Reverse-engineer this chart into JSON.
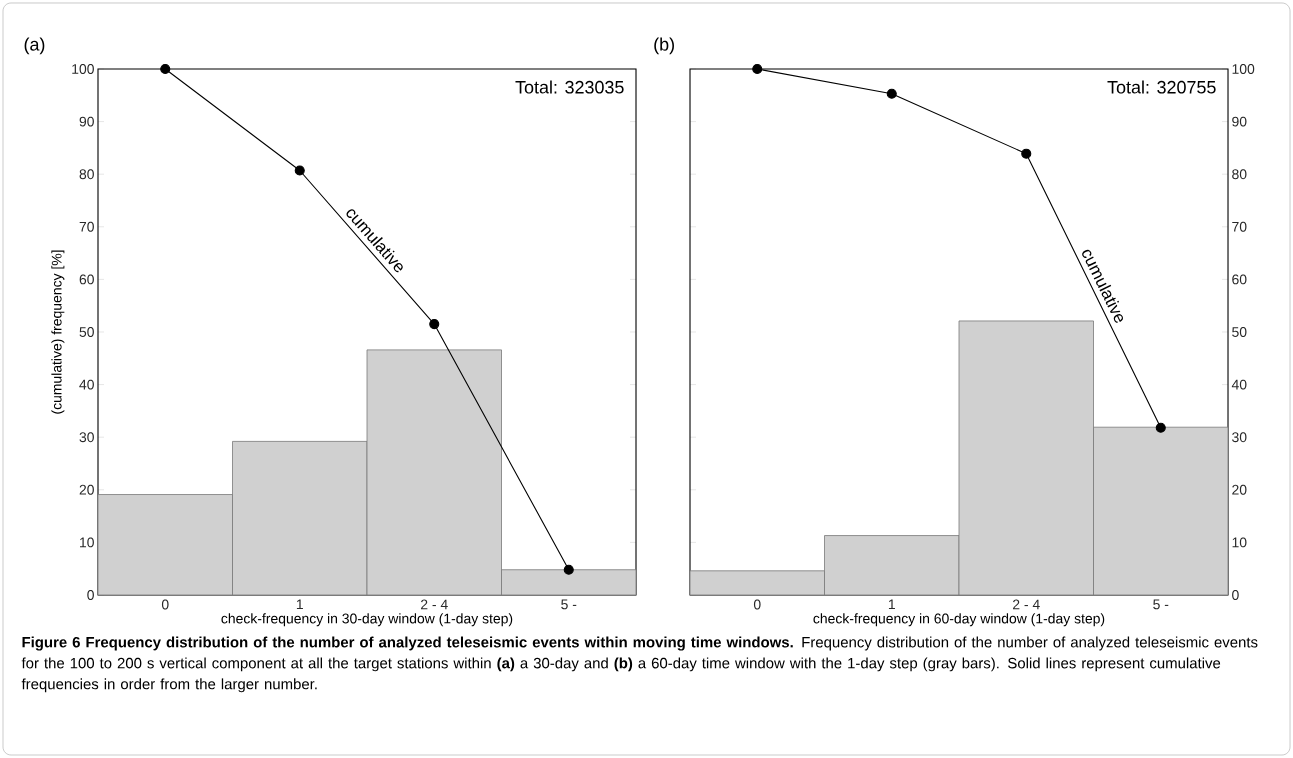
{
  "chart_data": [
    {
      "type": "bar",
      "title": "(a)",
      "xlabel": "check-frequency in 30-day window (1-day step)",
      "ylabel": "(cumulative) frequency [%]",
      "categories": [
        "0",
        "1",
        "2 - 4",
        "5 -"
      ],
      "series": [
        {
          "color": "#d0d0d0",
          "values": [
            19.1,
            29.2,
            46.6,
            4.8
          ]
        },
        {
          "type": "line",
          "name": "cumulative",
          "color": "#000000",
          "values": [
            100,
            80.7,
            51.5,
            4.8
          ]
        }
      ],
      "ylim": [
        0,
        100
      ],
      "yticks": [
        0,
        10,
        20,
        30,
        40,
        50,
        60,
        70,
        80,
        90,
        100
      ],
      "marker": "circle",
      "annotations": [
        "Total: 323035",
        "**Figure 6 Frequency distribution of the number of analyzed teleseismic events within moving time windows.** Frequency distribution of the number of analyzed teleseismic events for the 100 to 200 s vertical component at all the target stations within **(a)** a 30-day and **(b)** a 60-day time window with the 1-day step (gray bars). Solid lines represent cumulative frequencies in order from the larger number."
      ]
    },
    {
      "type": "bar",
      "title": "(b)",
      "xlabel": "check-frequency in 60-day window (1-day step)",
      "categories": [
        "0",
        "1",
        "2 - 4",
        "5 -"
      ],
      "series": [
        {
          "color": "#d0d0d0",
          "values": [
            4.6,
            11.3,
            52.1,
            31.9
          ]
        },
        {
          "type": "line",
          "name": "cumulative",
          "color": "#000000",
          "values": [
            100,
            95.3,
            83.9,
            31.8
          ]
        }
      ],
      "ylim": [
        0,
        100
      ],
      "yticks": [
        0,
        10,
        20,
        30,
        40,
        50,
        60,
        70,
        80,
        90,
        100
      ],
      "marker": "circle",
      "annotations": [
        "Total: 320755"
      ]
    }
  ]
}
